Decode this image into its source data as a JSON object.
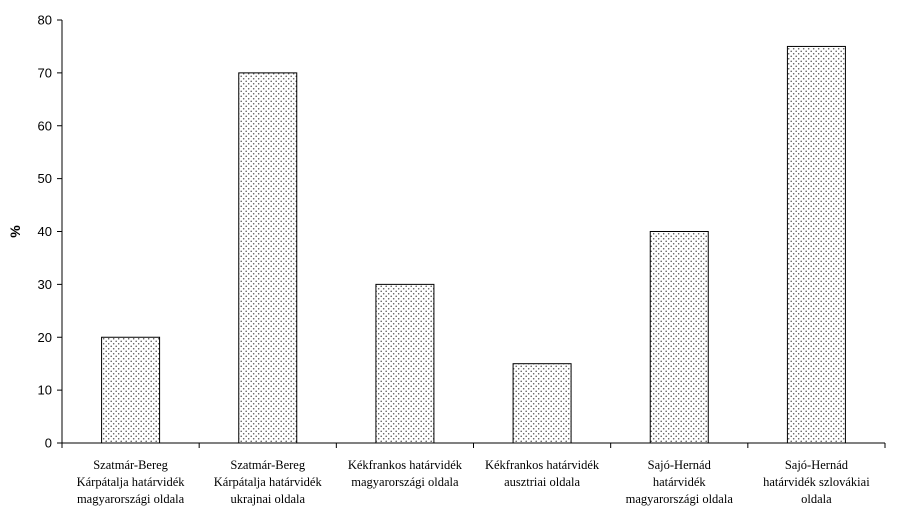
{
  "chart_data": {
    "type": "bar",
    "title": "",
    "xlabel": "",
    "ylabel": "%",
    "ylim": [
      0,
      80
    ],
    "yticks": [
      0,
      10,
      20,
      30,
      40,
      50,
      60,
      70,
      80
    ],
    "grid": false,
    "categories": [
      [
        "Szatmár-Bereg",
        "Kárpátalja határvidék",
        "magyarországi oldala"
      ],
      [
        "Szatmár-Bereg",
        "Kárpátalja határvidék",
        "ukrajnai oldala"
      ],
      [
        "Kékfrankos határvidék",
        "magyarországi oldala"
      ],
      [
        "Kékfrankos határvidék",
        "ausztriai oldala"
      ],
      [
        "Sajó-Hernád",
        "határvidék",
        "magyarországi oldala"
      ],
      [
        "Sajó-Hernád",
        "határvidék szlovákiai",
        "oldala"
      ]
    ],
    "values": [
      20,
      70,
      30,
      15,
      40,
      75
    ],
    "bar_fill": "#ffffff",
    "bar_dot_color": "#555555",
    "bar_stroke": "#000000"
  }
}
